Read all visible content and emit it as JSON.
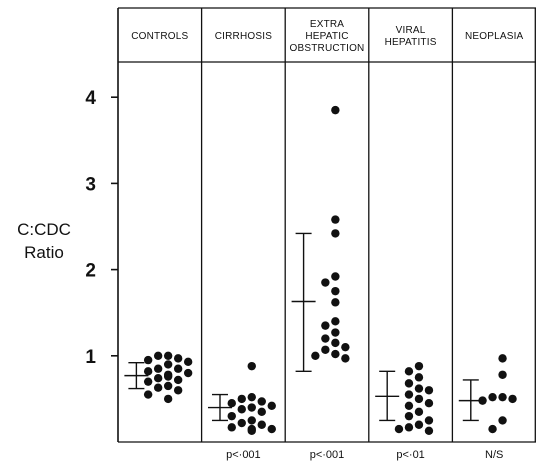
{
  "chart_data": {
    "type": "scatter",
    "ylabel_lines": [
      "C:CDC",
      "Ratio"
    ],
    "ylim": [
      0,
      4.4
    ],
    "yticks": [
      1,
      2,
      3,
      4
    ],
    "grid": false,
    "groups": [
      {
        "header_lines": [
          "CONTROLS"
        ],
        "p_value": "",
        "mean": 0.77,
        "lower": 0.62,
        "upper": 0.92,
        "values": [
          1.0,
          1.0,
          0.97,
          0.95,
          0.93,
          0.9,
          0.85,
          0.85,
          0.82,
          0.8,
          0.78,
          0.76,
          0.74,
          0.72,
          0.7,
          0.65,
          0.63,
          0.6,
          0.55,
          0.5
        ]
      },
      {
        "header_lines": [
          "CIRRHOSIS"
        ],
        "p_value": "p<·001",
        "mean": 0.4,
        "lower": 0.25,
        "upper": 0.55,
        "values": [
          0.88,
          0.52,
          0.5,
          0.47,
          0.45,
          0.42,
          0.4,
          0.38,
          0.35,
          0.3,
          0.25,
          0.22,
          0.2,
          0.17,
          0.15,
          0.15,
          0.13
        ]
      },
      {
        "header_lines": [
          "EXTRA",
          "HEPATIC",
          "OBSTRUCTION"
        ],
        "p_value": "p<·001",
        "mean": 1.63,
        "lower": 0.82,
        "upper": 2.42,
        "values": [
          3.85,
          2.58,
          2.42,
          1.92,
          1.85,
          1.75,
          1.62,
          1.4,
          1.35,
          1.27,
          1.2,
          1.15,
          1.1,
          1.07,
          1.02,
          1.0,
          0.97
        ]
      },
      {
        "header_lines": [
          "VIRAL",
          "HEPATITIS"
        ],
        "p_value": "p<·01",
        "mean": 0.53,
        "lower": 0.25,
        "upper": 0.82,
        "values": [
          0.88,
          0.82,
          0.75,
          0.68,
          0.62,
          0.6,
          0.55,
          0.5,
          0.45,
          0.42,
          0.35,
          0.3,
          0.25,
          0.2,
          0.17,
          0.15,
          0.13
        ]
      },
      {
        "header_lines": [
          "NEOPLASIA"
        ],
        "p_value": "N/S",
        "mean": 0.48,
        "lower": 0.25,
        "upper": 0.72,
        "values": [
          0.97,
          0.78,
          0.52,
          0.52,
          0.5,
          0.48,
          0.25,
          0.15
        ]
      }
    ]
  },
  "colors": {
    "ink": "#111111",
    "background": "#ffffff"
  }
}
